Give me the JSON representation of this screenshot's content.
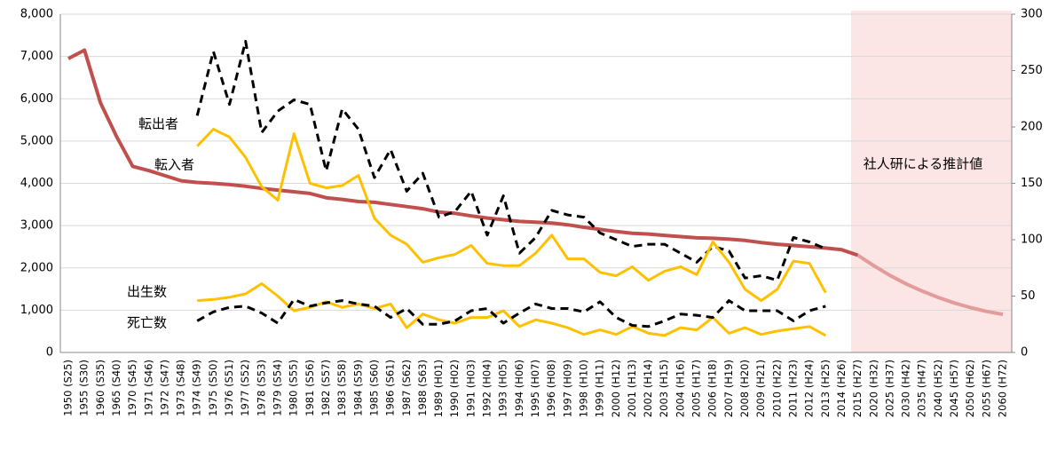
{
  "chart_data": {
    "type": "line",
    "categories": [
      "1950 (S25)",
      "1955 (S30)",
      "1960 (S35)",
      "1965 (S40)",
      "1970 (S45)",
      "1971 (S46)",
      "1972 (S47)",
      "1973 (S48)",
      "1974 (S49)",
      "1975 (S50)",
      "1976 (S51)",
      "1977 (S52)",
      "1978 (S53)",
      "1979 (S54)",
      "1980 (S55)",
      "1981 (S56)",
      "1982 (S57)",
      "1983 (S58)",
      "1984 (S59)",
      "1985 (S60)",
      "1986 (S61)",
      "1987 (S62)",
      "1988 (S63)",
      "1989 (H01)",
      "1990 (H02)",
      "1991 (H03)",
      "1992 (H04)",
      "1993 (H05)",
      "1994 (H06)",
      "1995 (H07)",
      "1996 (H08)",
      "1997 (H09)",
      "1998 (H10)",
      "1999 (H11)",
      "2000 (H12)",
      "2001 (H13)",
      "2002 (H14)",
      "2003 (H15)",
      "2004 (H16)",
      "2005 (H17)",
      "2006 (H18)",
      "2007 (H19)",
      "2008 (H20)",
      "2009 (H21)",
      "2010 (H22)",
      "2011 (H23)",
      "2012 (H24)",
      "2013 (H25)",
      "2014 (H26)",
      "2015 (H27)",
      "2020 (H32)",
      "2025 (H37)",
      "2030 (H42)",
      "2035 (H47)",
      "2040 (H52)",
      "2045 (H57)",
      "2050 (H62)",
      "2055 (H67)",
      "2060 (H72)"
    ],
    "series": [
      {
        "color": "#c0504d",
        "axis": "y",
        "values": [
          6950,
          7150,
          5900,
          5100,
          4400,
          4300,
          4180,
          4060,
          4020,
          4000,
          3970,
          3930,
          3880,
          3840,
          3800,
          3760,
          3660,
          3620,
          3570,
          3550,
          3500,
          3450,
          3400,
          3320,
          3290,
          3230,
          3180,
          3140,
          3100,
          3080,
          3060,
          3020,
          2960,
          2910,
          2860,
          2820,
          2800,
          2770,
          2740,
          2710,
          2700,
          2680,
          2650,
          2600,
          2560,
          2530,
          2500,
          2470,
          2430,
          2300,
          null,
          null,
          null,
          null,
          null,
          null,
          null,
          null,
          null
        ]
      },
      {
        "color": "#e39b9b",
        "axis": "y",
        "values": [
          null,
          null,
          null,
          null,
          null,
          null,
          null,
          null,
          null,
          null,
          null,
          null,
          null,
          null,
          null,
          null,
          null,
          null,
          null,
          null,
          null,
          null,
          null,
          null,
          null,
          null,
          null,
          null,
          null,
          null,
          null,
          null,
          null,
          null,
          null,
          null,
          null,
          null,
          null,
          null,
          null,
          null,
          null,
          null,
          null,
          null,
          null,
          null,
          null,
          2300,
          2050,
          1820,
          1620,
          1450,
          1300,
          1170,
          1060,
          970,
          900
        ]
      },
      {
        "name": "転出者",
        "color": "#000000",
        "style": "dashed",
        "axis": "y2",
        "values": [
          null,
          null,
          null,
          null,
          null,
          null,
          null,
          null,
          210,
          267,
          220,
          276,
          195,
          214,
          224,
          220,
          161,
          216,
          198,
          155,
          180,
          143,
          159,
          120,
          125,
          143,
          104,
          139,
          88,
          102,
          126,
          122,
          120,
          106,
          100,
          94,
          96,
          96,
          88,
          80,
          94,
          90,
          66,
          68,
          64,
          102,
          98,
          92,
          null,
          null,
          null,
          null,
          null,
          null,
          null,
          null,
          null,
          null,
          null
        ]
      },
      {
        "name": "転入者",
        "color": "#ffc000",
        "style": "solid",
        "axis": "y2",
        "values": [
          null,
          null,
          null,
          null,
          null,
          null,
          null,
          null,
          183,
          198,
          191,
          173,
          147,
          135,
          194,
          150,
          146,
          148,
          157,
          119,
          104,
          96,
          80,
          84,
          87,
          95,
          79,
          77,
          77,
          88,
          104,
          83,
          83,
          71,
          68,
          76,
          64,
          72,
          76,
          69,
          98,
          80,
          56,
          46,
          56,
          81,
          79,
          53,
          null,
          null,
          null,
          null,
          null,
          null,
          null,
          null,
          null,
          null,
          null
        ]
      },
      {
        "name": "出生数",
        "color": "#ffc000",
        "style": "solid",
        "axis": "y2",
        "values": [
          null,
          null,
          null,
          null,
          null,
          null,
          null,
          null,
          46,
          47,
          49,
          52,
          61,
          50,
          37,
          40,
          45,
          40,
          43,
          39,
          43,
          22,
          34,
          29,
          26,
          31,
          31,
          37,
          23,
          29,
          26,
          22,
          16,
          20,
          16,
          23,
          17,
          15,
          22,
          20,
          31,
          17,
          22,
          16,
          19,
          21,
          23,
          15,
          null,
          null,
          null,
          null,
          null,
          null,
          null,
          null,
          null,
          null,
          null
        ]
      },
      {
        "name": "死亡数",
        "color": "#000000",
        "style": "dashed",
        "axis": "y2",
        "values": [
          null,
          null,
          null,
          null,
          null,
          null,
          null,
          null,
          28,
          36,
          40,
          41,
          35,
          26,
          47,
          41,
          44,
          46,
          43,
          41,
          31,
          39,
          25,
          25,
          28,
          37,
          39,
          26,
          35,
          43,
          39,
          39,
          36,
          45,
          31,
          24,
          23,
          28,
          34,
          33,
          31,
          46,
          37,
          37,
          37,
          28,
          37,
          41,
          null,
          null,
          null,
          null,
          null,
          null,
          null,
          null,
          null,
          null,
          null
        ]
      }
    ],
    "ylim": [
      0,
      8000
    ],
    "yticks": [
      0,
      {
        "value": 1000,
        "label": "1,000"
      },
      {
        "value": 2000,
        "label": "2,000"
      },
      {
        "value": 3000,
        "label": "3,000"
      },
      {
        "value": 4000,
        "label": "4,000"
      },
      {
        "value": 5000,
        "label": "5,000"
      },
      {
        "value": 6000,
        "label": "6,000"
      },
      {
        "value": 7000,
        "label": "7,000"
      },
      {
        "value": 8000,
        "label": "8,000"
      }
    ],
    "y2lim": [
      0,
      300
    ],
    "y2ticks": [
      0,
      50,
      100,
      150,
      200,
      250,
      300
    ],
    "grid": true,
    "projection_label": "社人研による推計値"
  }
}
